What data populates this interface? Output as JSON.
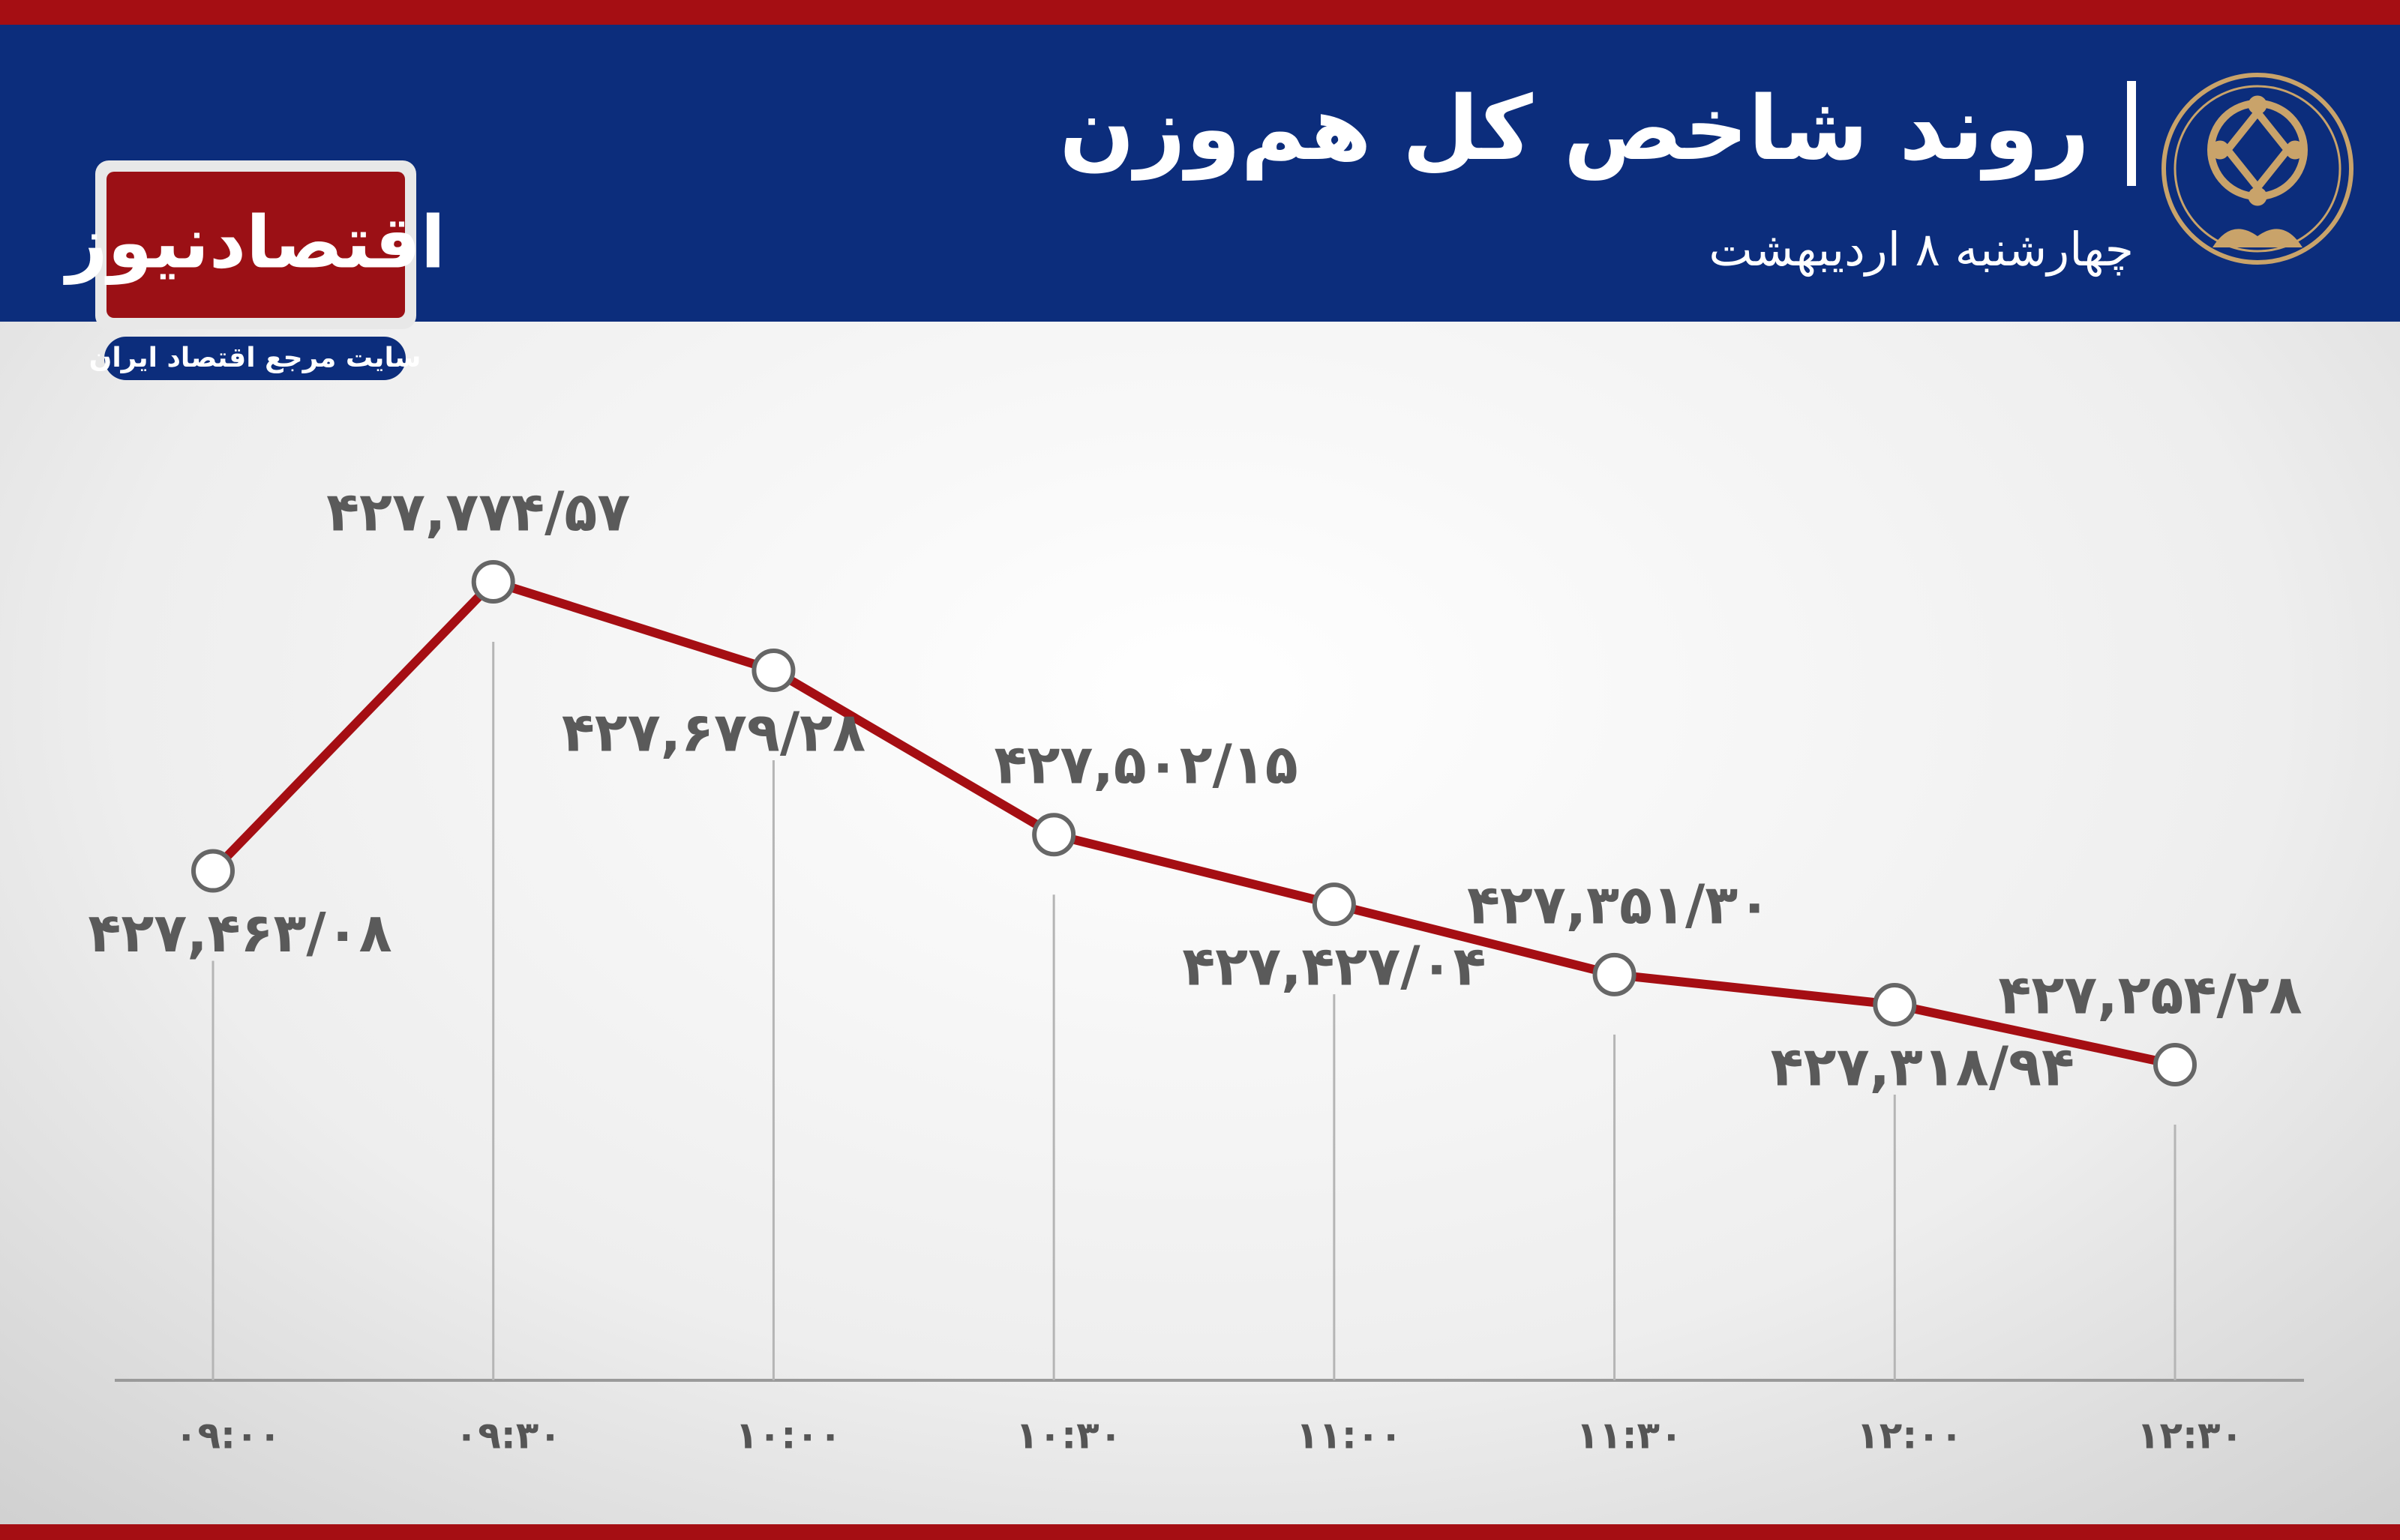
{
  "chart_data": {
    "type": "line",
    "title": "روند شاخص کل هم‌وزن",
    "subtitle": "چهارشنبه ۸ اردیبهشت",
    "brand": "اقتصادنیوز",
    "tagline": "سایت مرجع اقتصاد ایران",
    "categories": [
      "۰۹:۰۰",
      "۰۹:۳۰",
      "۱۰:۰۰",
      "۱۰:۳۰",
      "۱۱:۰۰",
      "۱۱:۳۰",
      "۱۲:۰۰",
      "۱۲:۳۰"
    ],
    "values": [
      427463.08,
      427774.57,
      427679.28,
      427502.15,
      427427.04,
      427351.3,
      427318.94,
      427254.28
    ],
    "value_labels": [
      "۴۲۷,۴۶۳/۰۸",
      "۴۲۷,۷۷۴/۵۷",
      "۴۲۷,۶۷۹/۲۸",
      "۴۲۷,۵۰۲/۱۵",
      "۴۲۷,۴۲۷/۰۴",
      "۴۲۷,۳۵۱/۳۰",
      "۴۲۷,۳۱۸/۹۴",
      "۴۲۷,۲۵۴/۲۸"
    ],
    "color": "#a50e13"
  }
}
